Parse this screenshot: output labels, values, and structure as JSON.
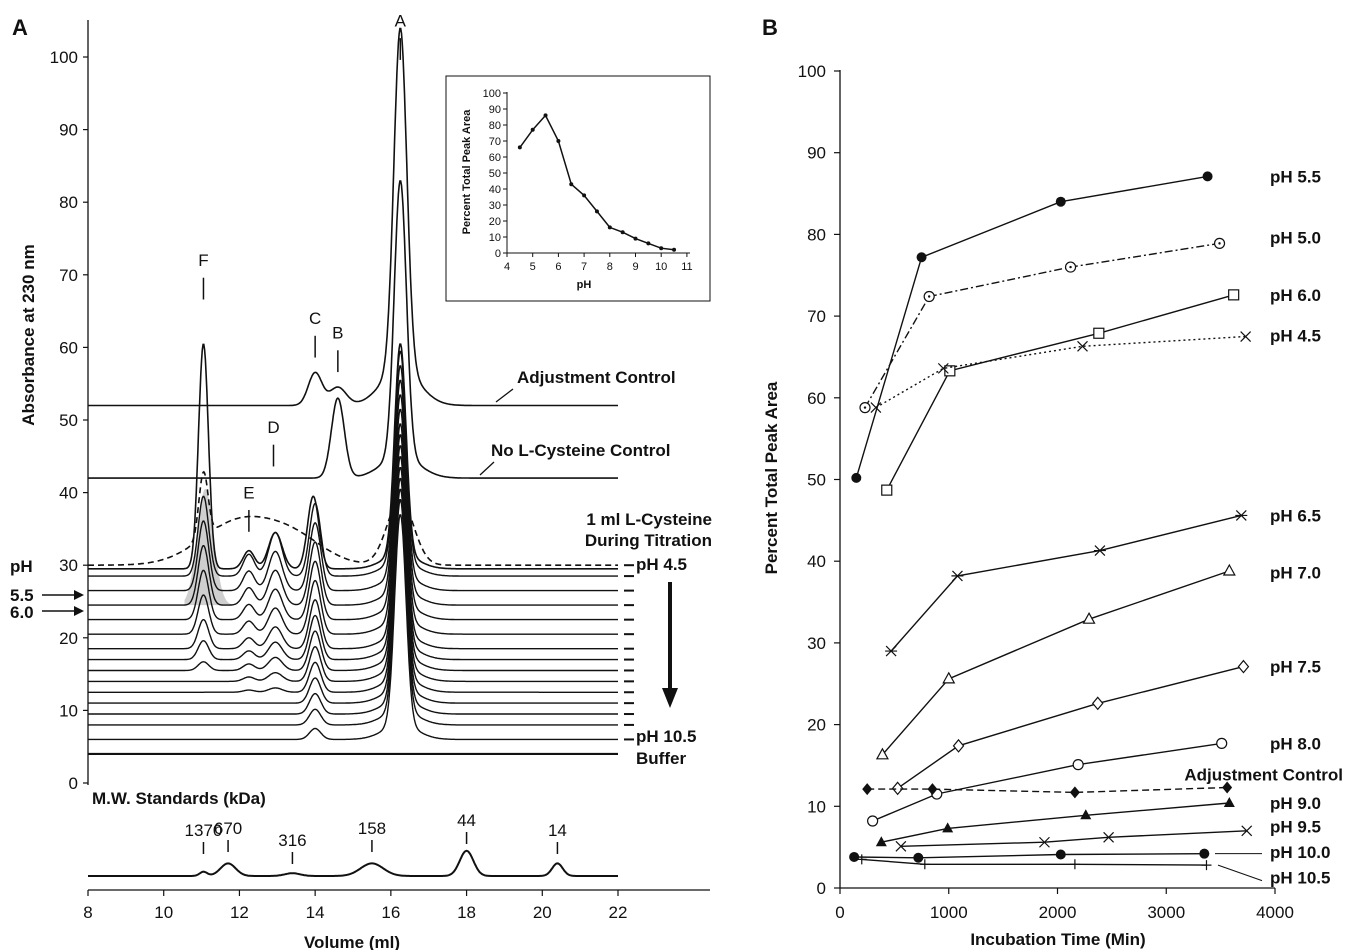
{
  "panel_a": {
    "label": "A",
    "ylabel": "Absorbance at 230 nm",
    "xlabel": "Volume (ml)",
    "xticks": [
      "8",
      "10",
      "12",
      "14",
      "16",
      "18",
      "20",
      "22"
    ],
    "yticks": [
      "0",
      "10",
      "20",
      "30",
      "40",
      "50",
      "60",
      "70",
      "80",
      "90",
      "100"
    ],
    "peak_letters": [
      "A",
      "B",
      "C",
      "D",
      "E",
      "F"
    ],
    "adjust_label": "Adjustment Control",
    "nocys_label": "No L-Cysteine Control",
    "cys_line1": "1 ml L-Cysteine",
    "cys_line2": "During Titration",
    "ph_start": "pH 4.5",
    "ph_end": "pH 10.5",
    "buffer_label": "Buffer",
    "ph_axis_label": "pH",
    "ph_arrow_1": "5.5",
    "ph_arrow_2": "6.0",
    "mw_title": "M.W. Standards (kDa)",
    "mw_labels": [
      "1370",
      "670",
      "316",
      "158",
      "44",
      "14"
    ]
  },
  "inset": {
    "ylabel": "Percent Total Peak Area",
    "xlabel": "pH",
    "xticks": [
      "4",
      "5",
      "6",
      "7",
      "8",
      "9",
      "10",
      "11"
    ],
    "yticks": [
      "0",
      "10",
      "20",
      "30",
      "40",
      "50",
      "60",
      "70",
      "80",
      "90",
      "100"
    ]
  },
  "panel_b": {
    "label": "B",
    "ylabel": "Percent Total Peak Area",
    "xlabel": "Incubation Time (Min)",
    "xticks": [
      "0",
      "1000",
      "2000",
      "3000",
      "4000"
    ],
    "yticks": [
      "0",
      "10",
      "20",
      "30",
      "40",
      "50",
      "60",
      "70",
      "80",
      "90",
      "100"
    ]
  },
  "chart_data": [
    {
      "type": "line",
      "panel": "A",
      "xlabel": "Volume (ml)",
      "ylabel": "Absorbance at 230 nm",
      "xlim": [
        8,
        22
      ],
      "ylim": [
        0,
        100
      ],
      "series": [
        {
          "name": "Adjustment Control",
          "baseline": 52,
          "peaks": [
            {
              "x": 14.0,
              "height": 4.5
            },
            {
              "x": 14.6,
              "height": 2.5
            },
            {
              "x": 16.25,
              "height": 47
            }
          ]
        },
        {
          "name": "No L-Cysteine Control",
          "baseline": 42,
          "peaks": [
            {
              "x": 14.6,
              "height": 11
            },
            {
              "x": 16.25,
              "height": 38
            }
          ]
        },
        {
          "name": "pH 4.5",
          "baseline": 30,
          "peaks": [
            {
              "x": 11.05,
              "height": 31
            },
            {
              "x": 12.2,
              "height": 3
            },
            {
              "x": 12.9,
              "height": 5
            },
            {
              "x": 13.95,
              "height": 10
            },
            {
              "x": 16.25,
              "height": 29
            }
          ]
        },
        {
          "name": "pH 10.5",
          "baseline": 6,
          "peaks": [
            {
              "x": 14.0,
              "height": 2
            },
            {
              "x": 16.25,
              "height": 29
            }
          ]
        },
        {
          "name": "Buffer",
          "baseline": 4,
          "peaks": []
        }
      ],
      "peak_labels": [
        {
          "label": "A",
          "x": 16.25
        },
        {
          "label": "B",
          "x": 14.6
        },
        {
          "label": "C",
          "x": 14.0
        },
        {
          "label": "D",
          "x": 12.9
        },
        {
          "label": "E",
          "x": 12.25
        },
        {
          "label": "F",
          "x": 11.05
        }
      ],
      "mw_standards": [
        {
          "kDa": 1370,
          "x": 11.05
        },
        {
          "kDa": 670,
          "x": 11.7
        },
        {
          "kDa": 316,
          "x": 13.4
        },
        {
          "kDa": 158,
          "x": 15.5
        },
        {
          "kDa": 44,
          "x": 18.0
        },
        {
          "kDa": 14,
          "x": 20.4
        }
      ]
    },
    {
      "type": "line",
      "panel": "A inset",
      "xlabel": "pH",
      "ylabel": "Percent Total Peak Area",
      "xlim": [
        4,
        11
      ],
      "ylim": [
        0,
        100
      ],
      "series": [
        {
          "x": [
            4.5,
            5.0,
            5.5,
            6.0,
            6.5,
            7.0,
            7.5,
            8.0,
            8.5,
            9.0,
            9.5,
            10.0,
            10.5
          ],
          "y": [
            66,
            77,
            86,
            70,
            43,
            36,
            26,
            16,
            13,
            9,
            6,
            3,
            2
          ]
        }
      ]
    },
    {
      "type": "line",
      "panel": "B",
      "xlabel": "Incubation Time (Min)",
      "ylabel": "Percent Total Peak Area",
      "xlim": [
        0,
        4000
      ],
      "ylim": [
        0,
        100
      ],
      "series": [
        {
          "name": "pH 5.5",
          "color": "#111111",
          "x": [
            150,
            750,
            2030,
            3380
          ],
          "y": [
            50.2,
            77.2,
            84.0,
            87.1
          ]
        },
        {
          "name": "pH 5.0",
          "color": "#111111",
          "x": [
            230,
            820,
            2120,
            3490
          ],
          "y": [
            58.8,
            72.4,
            76.0,
            78.9
          ]
        },
        {
          "name": "pH 6.0",
          "color": "#111111",
          "x": [
            430,
            1010,
            2380,
            3620
          ],
          "y": [
            48.7,
            63.3,
            67.9,
            72.6
          ]
        },
        {
          "name": "pH 4.5",
          "color": "#111111",
          "x": [
            330,
            950,
            2230,
            3730
          ],
          "y": [
            58.8,
            63.6,
            66.3,
            67.5
          ]
        },
        {
          "name": "pH 6.5",
          "color": "#111111",
          "x": [
            470,
            1080,
            2390,
            3690
          ],
          "y": [
            29.0,
            38.2,
            41.3,
            45.6
          ]
        },
        {
          "name": "pH 7.0",
          "color": "#111111",
          "x": [
            390,
            1000,
            2290,
            3580
          ],
          "y": [
            16.3,
            25.6,
            32.9,
            38.8
          ]
        },
        {
          "name": "pH 7.5",
          "color": "#111111",
          "x": [
            530,
            1090,
            2370,
            3710
          ],
          "y": [
            12.2,
            17.4,
            22.6,
            27.1
          ]
        },
        {
          "name": "pH 8.0",
          "color": "#111111",
          "x": [
            300,
            890,
            2190,
            3510
          ],
          "y": [
            8.2,
            11.5,
            15.1,
            17.7
          ]
        },
        {
          "name": "Adjustment Control",
          "color": "#111111",
          "x": [
            250,
            850,
            2160,
            3560
          ],
          "y": [
            12.1,
            12.1,
            11.7,
            12.3
          ]
        },
        {
          "name": "pH 9.0",
          "color": "#111111",
          "x": [
            380,
            990,
            2260,
            3580
          ],
          "y": [
            5.6,
            7.3,
            8.9,
            10.4
          ]
        },
        {
          "name": "pH 9.5",
          "color": "#111111",
          "x": [
            560,
            1880,
            2470,
            3740
          ],
          "y": [
            5.1,
            5.6,
            6.2,
            7.0
          ]
        },
        {
          "name": "pH 10.0",
          "color": "#111111",
          "x": [
            130,
            720,
            2030,
            3350
          ],
          "y": [
            3.8,
            3.7,
            4.1,
            4.2
          ]
        },
        {
          "name": "pH 10.5",
          "color": "#111111",
          "x": [
            200,
            780,
            2160,
            3370
          ],
          "y": [
            3.5,
            2.9,
            2.9,
            2.8
          ]
        }
      ]
    }
  ]
}
